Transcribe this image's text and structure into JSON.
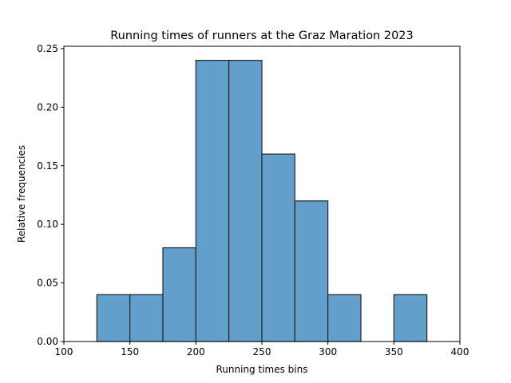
{
  "chart_data": {
    "type": "bar",
    "title": "Running times of runners at the Graz Maration 2023",
    "xlabel": "Running times bins",
    "ylabel": "Relative frequencies",
    "xlim": [
      100,
      400
    ],
    "ylim": [
      0,
      0.252
    ],
    "xticks": [
      100,
      150,
      200,
      250,
      300,
      350,
      400
    ],
    "xtick_labels": [
      "100",
      "150",
      "200",
      "250",
      "300",
      "350",
      "400"
    ],
    "yticks": [
      0,
      0.05,
      0.1,
      0.15,
      0.2,
      0.25
    ],
    "ytick_labels": [
      "0.00",
      "0.05",
      "0.10",
      "0.15",
      "0.20",
      "0.25"
    ],
    "bins": [
      {
        "start": 125,
        "end": 150,
        "value": 0.04
      },
      {
        "start": 150,
        "end": 175,
        "value": 0.04
      },
      {
        "start": 175,
        "end": 200,
        "value": 0.08
      },
      {
        "start": 200,
        "end": 225,
        "value": 0.24
      },
      {
        "start": 225,
        "end": 250,
        "value": 0.24
      },
      {
        "start": 250,
        "end": 275,
        "value": 0.16
      },
      {
        "start": 275,
        "end": 300,
        "value": 0.12
      },
      {
        "start": 300,
        "end": 325,
        "value": 0.04
      },
      {
        "start": 350,
        "end": 375,
        "value": 0.04
      }
    ],
    "grid": false,
    "bar_color": "#629fca",
    "edge_color": "#262626"
  }
}
